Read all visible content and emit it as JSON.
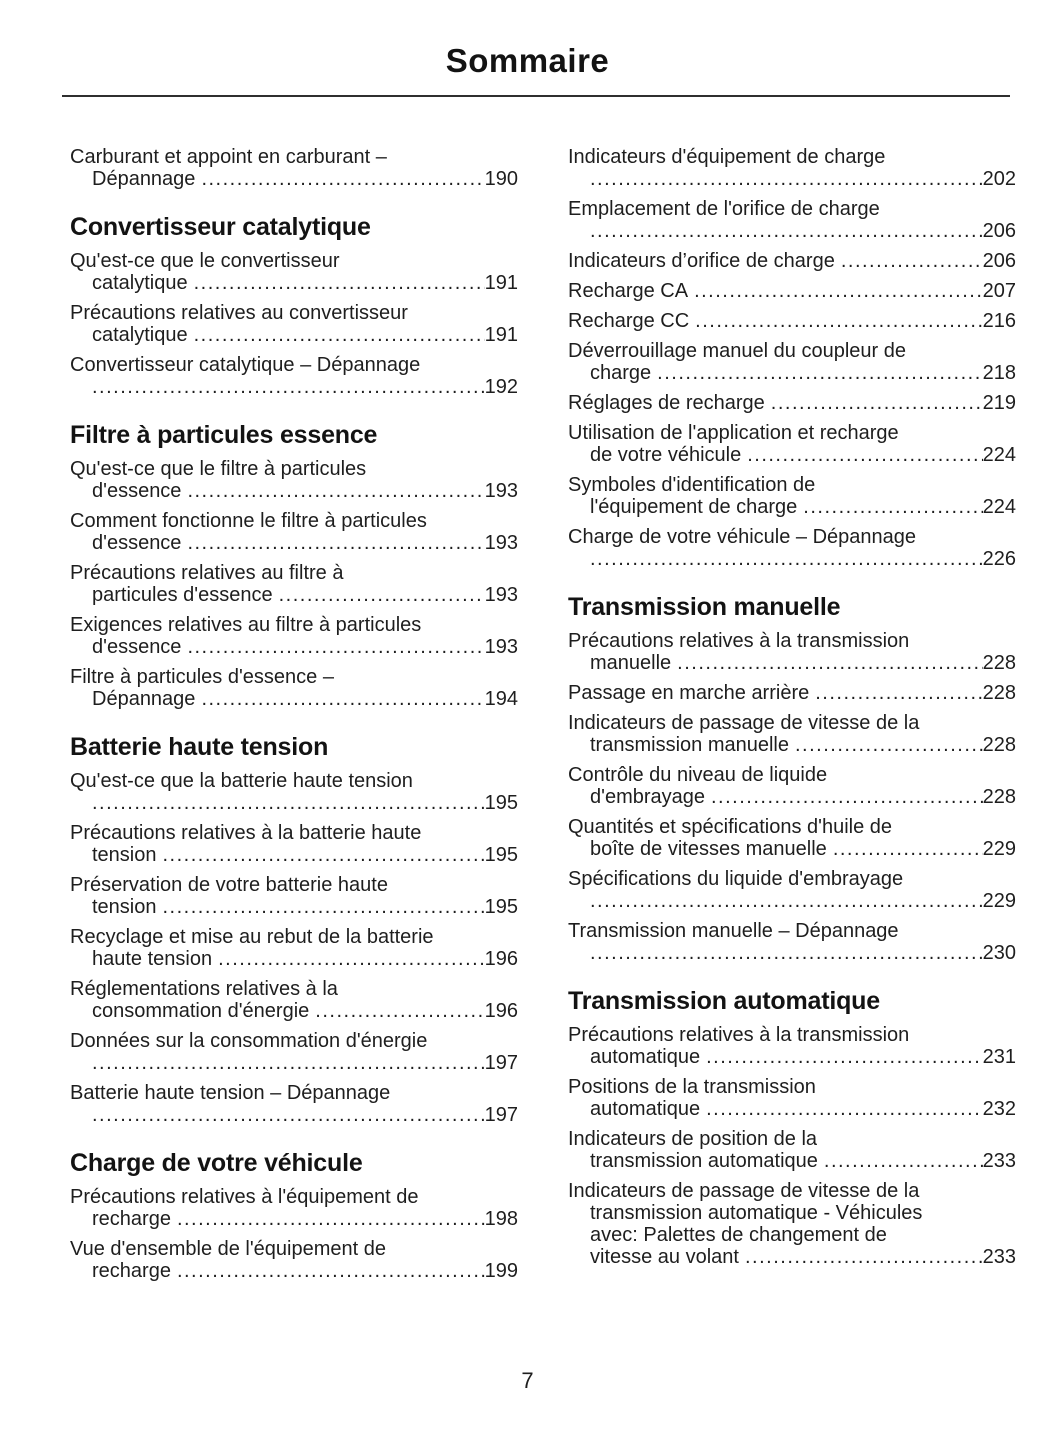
{
  "header": {
    "title": "Sommaire"
  },
  "footer": {
    "page_number": "7"
  },
  "columns": [
    {
      "blocks": [
        {
          "t": "e",
          "pre": [
            "Carburant et appoint en carburant –"
          ],
          "last": "Dépannage",
          "pg": "190"
        },
        {
          "t": "h",
          "text": "Convertisseur catalytique"
        },
        {
          "t": "e",
          "pre": [
            "Qu'est-ce que le convertisseur"
          ],
          "last": "catalytique",
          "pg": "191"
        },
        {
          "t": "e",
          "pre": [
            "Précautions relatives au convertisseur"
          ],
          "last": "catalytique",
          "pg": "191"
        },
        {
          "t": "e",
          "pre": [
            "Convertisseur catalytique – Dépannage"
          ],
          "last": "",
          "pg": "192"
        },
        {
          "t": "h",
          "text": "Filtre à particules essence"
        },
        {
          "t": "e",
          "pre": [
            "Qu'est-ce que le filtre à particules"
          ],
          "last": "d'essence",
          "pg": "193"
        },
        {
          "t": "e",
          "pre": [
            "Comment fonctionne le filtre à particules"
          ],
          "last": "d'essence",
          "pg": "193"
        },
        {
          "t": "e",
          "pre": [
            "Précautions relatives au filtre à"
          ],
          "last": "particules d'essence",
          "pg": "193"
        },
        {
          "t": "e",
          "pre": [
            "Exigences relatives au filtre à particules"
          ],
          "last": "d'essence",
          "pg": "193"
        },
        {
          "t": "e",
          "pre": [
            "Filtre à particules d'essence –"
          ],
          "last": "Dépannage",
          "pg": "194"
        },
        {
          "t": "h",
          "text": "Batterie haute tension"
        },
        {
          "t": "e",
          "pre": [
            "Qu'est-ce que la batterie haute tension"
          ],
          "last": "",
          "pg": "195"
        },
        {
          "t": "e",
          "pre": [
            "Précautions relatives à la batterie haute"
          ],
          "last": "tension",
          "pg": "195"
        },
        {
          "t": "e",
          "pre": [
            "Préservation de votre batterie haute"
          ],
          "last": "tension",
          "pg": "195"
        },
        {
          "t": "e",
          "pre": [
            "Recyclage et mise au rebut de la batterie"
          ],
          "last": "haute tension",
          "pg": "196"
        },
        {
          "t": "e",
          "pre": [
            "Réglementations relatives à la"
          ],
          "last": "consommation d'énergie",
          "pg": "196"
        },
        {
          "t": "e",
          "pre": [
            "Données sur la consommation d'énergie"
          ],
          "last": "",
          "pg": "197"
        },
        {
          "t": "e",
          "pre": [
            "Batterie haute tension – Dépannage"
          ],
          "last": "",
          "pg": "197"
        },
        {
          "t": "h",
          "text": "Charge de votre véhicule"
        },
        {
          "t": "e",
          "pre": [
            "Précautions relatives à l'équipement de"
          ],
          "last": "recharge",
          "pg": "198"
        },
        {
          "t": "e",
          "pre": [
            "Vue d'ensemble de l'équipement de"
          ],
          "last": "recharge",
          "pg": "199"
        }
      ]
    },
    {
      "blocks": [
        {
          "t": "e",
          "pre": [
            "Indicateurs d'équipement de charge"
          ],
          "last": "",
          "pg": "202"
        },
        {
          "t": "e",
          "pre": [
            "Emplacement de l'orifice de charge"
          ],
          "last": "",
          "pg": "206"
        },
        {
          "t": "e",
          "pre": [],
          "last": "Indicateurs d’orifice de charge",
          "pg": "206"
        },
        {
          "t": "e",
          "pre": [],
          "last": "Recharge CA",
          "pg": "207"
        },
        {
          "t": "e",
          "pre": [],
          "last": "Recharge CC",
          "pg": "216"
        },
        {
          "t": "e",
          "pre": [
            "Déverrouillage manuel du coupleur de"
          ],
          "last": "charge",
          "pg": "218"
        },
        {
          "t": "e",
          "pre": [],
          "last": "Réglages de recharge",
          "pg": "219"
        },
        {
          "t": "e",
          "pre": [
            "Utilisation de l'application et recharge"
          ],
          "last": "de votre véhicule",
          "pg": "224"
        },
        {
          "t": "e",
          "pre": [
            "Symboles d'identification de"
          ],
          "last": "l'équipement de charge",
          "pg": "224"
        },
        {
          "t": "e",
          "pre": [
            "Charge de votre véhicule – Dépannage"
          ],
          "last": "",
          "pg": "226"
        },
        {
          "t": "h",
          "text": "Transmission manuelle"
        },
        {
          "t": "e",
          "pre": [
            "Précautions relatives à la transmission"
          ],
          "last": "manuelle",
          "pg": "228"
        },
        {
          "t": "e",
          "pre": [],
          "last": "Passage en marche arrière",
          "pg": "228"
        },
        {
          "t": "e",
          "pre": [
            "Indicateurs de passage de vitesse de la"
          ],
          "last": "transmission manuelle",
          "pg": "228"
        },
        {
          "t": "e",
          "pre": [
            "Contrôle du niveau de liquide"
          ],
          "last": "d'embrayage",
          "pg": "228"
        },
        {
          "t": "e",
          "pre": [
            "Quantités et spécifications d'huile de"
          ],
          "last": "boîte de vitesses manuelle",
          "pg": "229"
        },
        {
          "t": "e",
          "pre": [
            "Spécifications du liquide d'embrayage"
          ],
          "last": "",
          "pg": "229"
        },
        {
          "t": "e",
          "pre": [
            "Transmission manuelle – Dépannage"
          ],
          "last": "",
          "pg": "230"
        },
        {
          "t": "h",
          "text": "Transmission automatique"
        },
        {
          "t": "e",
          "pre": [
            "Précautions relatives à la transmission"
          ],
          "last": "automatique",
          "pg": "231"
        },
        {
          "t": "e",
          "pre": [
            "Positions de la transmission"
          ],
          "last": "automatique",
          "pg": "232"
        },
        {
          "t": "e",
          "pre": [
            "Indicateurs de position de la"
          ],
          "last": "transmission automatique",
          "pg": "233"
        },
        {
          "t": "e",
          "pre": [
            "Indicateurs de passage de vitesse de la",
            "transmission automatique - Véhicules",
            "avec: Palettes de changement de"
          ],
          "last": "vitesse au volant",
          "pg": "233"
        }
      ]
    }
  ]
}
